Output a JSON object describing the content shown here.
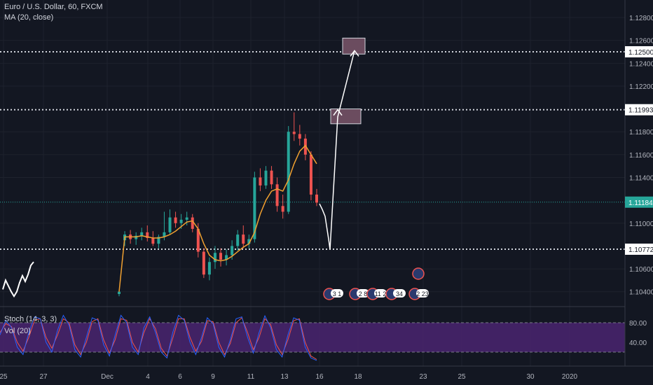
{
  "title": "Euro / U.S. Dollar, 60, FXCM",
  "indicators": {
    "ma": "MA (20, close)",
    "stoch": "Stoch (14, 3, 3)",
    "vol": "Vol (20)"
  },
  "colors": {
    "background": "#131722",
    "up": "#26a69a",
    "down": "#ef5350",
    "ma": "#f0a030",
    "stoch_k": "#2962ff",
    "stoch_d": "#ef5350",
    "stoch_band": "#4a2470",
    "boxes": "#6b4c5f",
    "arrow": "#ffffff",
    "current": "#26a69a"
  },
  "chart_data": {
    "type": "candlestick",
    "price_axis": {
      "range": [
        1.1034,
        1.1285
      ],
      "ticks": [
        "1.12800",
        "1.12600",
        "1.12400",
        "1.12200",
        "1.11800",
        "1.11600",
        "1.11400",
        "1.11000",
        "1.10600",
        "1.10400"
      ]
    },
    "levels": [
      {
        "price": 1.125,
        "label": "1.12500"
      },
      {
        "price": 1.11993,
        "label": "1.11993"
      },
      {
        "price": 1.10772,
        "label": "1.10772"
      }
    ],
    "current_price": {
      "price": 1.11184,
      "label": "1.11184"
    },
    "x_labels": [
      "25",
      "27",
      "Dec",
      "4",
      "6",
      "9",
      "11",
      "13",
      "16",
      "18",
      "23",
      "25",
      "30",
      "2020"
    ],
    "projection_boxes": [
      {
        "price_low": 1.1187,
        "price_high": 1.12
      },
      {
        "price_low": 1.1248,
        "price_high": 1.1262
      }
    ],
    "projection_path": [
      [
        0,
        1.1117
      ],
      [
        1,
        1.1112
      ],
      [
        2,
        1.1106
      ],
      [
        3,
        1.1098
      ],
      [
        4,
        1.1086
      ],
      [
        5,
        1.1077
      ],
      [
        6,
        1.1193
      ],
      [
        7,
        1.1251
      ]
    ],
    "ohlc": [
      [
        1.1038,
        1.1042,
        1.1036,
        1.104
      ],
      [
        1.1085,
        1.1093,
        1.108,
        1.109
      ],
      [
        1.109,
        1.1094,
        1.1082,
        1.1086
      ],
      [
        1.1086,
        1.1092,
        1.1081,
        1.1089
      ],
      [
        1.1089,
        1.1096,
        1.1085,
        1.1092
      ],
      [
        1.1092,
        1.1098,
        1.1084,
        1.1087
      ],
      [
        1.1087,
        1.1093,
        1.108,
        1.1082
      ],
      [
        1.1082,
        1.109,
        1.1078,
        1.1088
      ],
      [
        1.1088,
        1.111,
        1.1085,
        1.1092
      ],
      [
        1.1092,
        1.1112,
        1.109,
        1.1105
      ],
      [
        1.1105,
        1.111,
        1.1096,
        1.11
      ],
      [
        1.11,
        1.1108,
        1.1095,
        1.1103
      ],
      [
        1.1103,
        1.111,
        1.1098,
        1.1105
      ],
      [
        1.1105,
        1.1108,
        1.1092,
        1.1095
      ],
      [
        1.1095,
        1.11,
        1.107,
        1.1075
      ],
      [
        1.1075,
        1.1078,
        1.1052,
        1.1055
      ],
      [
        1.1055,
        1.107,
        1.105,
        1.1066
      ],
      [
        1.1066,
        1.108,
        1.106,
        1.1074
      ],
      [
        1.1074,
        1.1078,
        1.1062,
        1.1068
      ],
      [
        1.1068,
        1.1077,
        1.1063,
        1.1072
      ],
      [
        1.1072,
        1.1085,
        1.1068,
        1.108
      ],
      [
        1.108,
        1.1094,
        1.1076,
        1.109
      ],
      [
        1.109,
        1.1098,
        1.1078,
        1.1082
      ],
      [
        1.1082,
        1.109,
        1.1078,
        1.1086
      ],
      [
        1.1086,
        1.1145,
        1.1083,
        1.114
      ],
      [
        1.114,
        1.1148,
        1.1128,
        1.1133
      ],
      [
        1.1133,
        1.115,
        1.113,
        1.1146
      ],
      [
        1.1146,
        1.115,
        1.113,
        1.1134
      ],
      [
        1.1134,
        1.114,
        1.111,
        1.1115
      ],
      [
        1.1115,
        1.1125,
        1.1104,
        1.111
      ],
      [
        1.111,
        1.1185,
        1.1108,
        1.118
      ],
      [
        1.118,
        1.1197,
        1.1172,
        1.1178
      ],
      [
        1.1178,
        1.1186,
        1.1168,
        1.1174
      ],
      [
        1.1174,
        1.1178,
        1.1155,
        1.116
      ],
      [
        1.116,
        1.1163,
        1.112,
        1.1125
      ],
      [
        1.1125,
        1.113,
        1.1115,
        1.1118
      ]
    ],
    "ma": [
      1.104,
      1.1088,
      1.1088,
      1.1088,
      1.1089,
      1.1088,
      1.1087,
      1.1087,
      1.1088,
      1.109,
      1.1093,
      1.1097,
      1.1101,
      1.1102,
      1.1095,
      1.1082,
      1.1072,
      1.1068,
      1.1067,
      1.1068,
      1.1071,
      1.1075,
      1.1079,
      1.1082,
      1.1092,
      1.1108,
      1.112,
      1.1128,
      1.113,
      1.1128,
      1.1138,
      1.1152,
      1.1163,
      1.1168,
      1.116,
      1.1152
    ],
    "prior_line": [
      1.1042,
      1.105,
      1.1045,
      1.104,
      1.1036,
      1.104,
      1.1048,
      1.1054,
      1.1049,
      1.1055,
      1.1063,
      1.1066
    ],
    "stoch": {
      "range": [
        0,
        100
      ],
      "ticks": [
        "80.00",
        "40.00"
      ],
      "band": [
        20,
        80
      ],
      "k": [
        55,
        85,
        70,
        30,
        15,
        60,
        92,
        88,
        40,
        20,
        65,
        95,
        75,
        25,
        10,
        50,
        90,
        85,
        35,
        12,
        55,
        95,
        80,
        30,
        15,
        70,
        92,
        60,
        20,
        8,
        60,
        95,
        85,
        40,
        15,
        50,
        90,
        78,
        30,
        10,
        45,
        88,
        92,
        50,
        18,
        60,
        94,
        70,
        25,
        10,
        55,
        90,
        85,
        30,
        8,
        3
      ],
      "d": [
        60,
        78,
        72,
        40,
        22,
        50,
        85,
        88,
        50,
        28,
        55,
        88,
        80,
        35,
        15,
        40,
        82,
        88,
        45,
        18,
        45,
        88,
        85,
        40,
        20,
        60,
        88,
        68,
        28,
        12,
        48,
        88,
        88,
        50,
        22,
        42,
        84,
        82,
        40,
        15,
        38,
        80,
        90,
        60,
        25,
        50,
        88,
        76,
        35,
        15,
        45,
        84,
        88,
        40,
        12,
        5
      ]
    },
    "events": [
      {
        "label": "3 1"
      },
      {
        "label": "2 8"
      },
      {
        "label": "11 2"
      },
      {
        "label": "34"
      },
      {
        "label": "2 23"
      }
    ]
  }
}
